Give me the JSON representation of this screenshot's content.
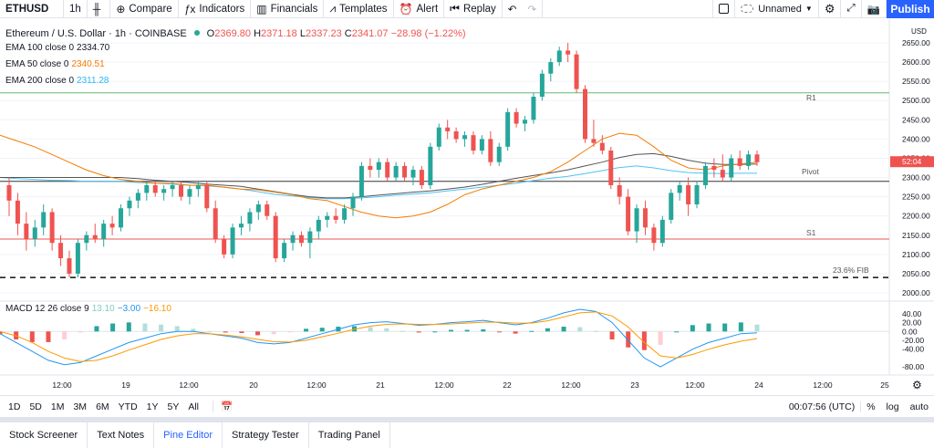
{
  "toolbar": {
    "symbol": "ETHUSD",
    "interval": "1h",
    "compare": "Compare",
    "indicators": "Indicators",
    "financials": "Financials",
    "templates": "Templates",
    "alert": "Alert",
    "replay": "Replay",
    "layout_name": "Unnamed",
    "publish": "Publish"
  },
  "legend": {
    "title": "Ethereum / U.S. Dollar · 1h · COINBASE",
    "o_label": "O",
    "o": "2369.80",
    "h_label": "H",
    "h": "2371.18",
    "l_label": "L",
    "l": "2337.23",
    "c_label": "C",
    "c": "2341.07",
    "change": "−28.98 (−1.22%)",
    "ema100_label": "EMA 100 close 0",
    "ema100": "2334.70",
    "ema50_label": "EMA 50 close 0",
    "ema50": "2340.51",
    "ema200_label": "EMA 200 close 0",
    "ema200": "2311.28",
    "macd_label": "MACD 12 26 close 9",
    "macd_hist": "13.10",
    "macd": "−3.00",
    "macd_signal": "−16.10"
  },
  "colors": {
    "up": "#26a69a",
    "down": "#ef5350",
    "ema100": "#555555",
    "ema50": "#f57c00",
    "ema200": "#4fc3f7",
    "r1": "#66bb6a",
    "s1": "#ef5350",
    "pivot": "#333333",
    "accent": "#2962ff",
    "macd": "#2196f3",
    "signal": "#ff9800"
  },
  "price_axis": {
    "currency": "USD",
    "ticks": [
      "2650.00",
      "2600.00",
      "2550.00",
      "2500.00",
      "2450.00",
      "2400.00",
      "2350.00",
      "2300.00",
      "2250.00",
      "2200.00",
      "2150.00",
      "2100.00",
      "2050.00",
      "2000.00"
    ],
    "last_price": "2341.07",
    "countdown": "52:04"
  },
  "macd_axis": {
    "ticks": [
      "40.00",
      "20.00",
      "0.00",
      "-20.00",
      "-40.00",
      "-80.00"
    ]
  },
  "time_axis": {
    "ticks": [
      "12:00",
      "19",
      "12:00",
      "20",
      "12:00",
      "21",
      "12:00",
      "22",
      "12:00",
      "23",
      "12:00",
      "24",
      "12:00",
      "25"
    ]
  },
  "levels": {
    "r1": "R1",
    "pivot": "Pivot",
    "s1": "S1",
    "fib": "23.6% FIB"
  },
  "chart_data": {
    "type": "candlestick",
    "y_range": [
      2000,
      2650
    ],
    "levels": {
      "r1": 2520,
      "pivot": 2290,
      "s1": 2140,
      "fib": 2040
    },
    "candles": [
      [
        2280,
        2300,
        2200,
        2240
      ],
      [
        2240,
        2260,
        2150,
        2180
      ],
      [
        2180,
        2210,
        2110,
        2140
      ],
      [
        2140,
        2190,
        2120,
        2170
      ],
      [
        2170,
        2230,
        2150,
        2210
      ],
      [
        2210,
        2220,
        2110,
        2130
      ],
      [
        2130,
        2150,
        2070,
        2090
      ],
      [
        2090,
        2110,
        2040,
        2050
      ],
      [
        2050,
        2140,
        2040,
        2130
      ],
      [
        2130,
        2160,
        2110,
        2150
      ],
      [
        2150,
        2180,
        2130,
        2140
      ],
      [
        2140,
        2190,
        2120,
        2180
      ],
      [
        2180,
        2200,
        2150,
        2170
      ],
      [
        2170,
        2230,
        2160,
        2220
      ],
      [
        2220,
        2250,
        2200,
        2240
      ],
      [
        2240,
        2270,
        2220,
        2260
      ],
      [
        2260,
        2290,
        2240,
        2280
      ],
      [
        2280,
        2290,
        2250,
        2260
      ],
      [
        2260,
        2280,
        2240,
        2270
      ],
      [
        2270,
        2290,
        2250,
        2280
      ],
      [
        2280,
        2290,
        2240,
        2250
      ],
      [
        2250,
        2280,
        2230,
        2270
      ],
      [
        2270,
        2290,
        2250,
        2280
      ],
      [
        2280,
        2290,
        2210,
        2220
      ],
      [
        2220,
        2240,
        2130,
        2140
      ],
      [
        2140,
        2150,
        2090,
        2100
      ],
      [
        2100,
        2180,
        2090,
        2170
      ],
      [
        2170,
        2200,
        2150,
        2180
      ],
      [
        2180,
        2220,
        2160,
        2210
      ],
      [
        2210,
        2240,
        2190,
        2230
      ],
      [
        2230,
        2240,
        2190,
        2200
      ],
      [
        2200,
        2210,
        2080,
        2090
      ],
      [
        2090,
        2140,
        2080,
        2130
      ],
      [
        2130,
        2160,
        2110,
        2150
      ],
      [
        2150,
        2160,
        2120,
        2130
      ],
      [
        2130,
        2170,
        2090,
        2160
      ],
      [
        2160,
        2200,
        2140,
        2190
      ],
      [
        2190,
        2210,
        2170,
        2200
      ],
      [
        2200,
        2220,
        2180,
        2190
      ],
      [
        2190,
        2230,
        2180,
        2220
      ],
      [
        2220,
        2260,
        2200,
        2250
      ],
      [
        2250,
        2340,
        2240,
        2330
      ],
      [
        2330,
        2350,
        2300,
        2320
      ],
      [
        2320,
        2350,
        2300,
        2340
      ],
      [
        2340,
        2350,
        2290,
        2300
      ],
      [
        2300,
        2340,
        2290,
        2330
      ],
      [
        2330,
        2340,
        2290,
        2300
      ],
      [
        2300,
        2330,
        2280,
        2320
      ],
      [
        2320,
        2330,
        2270,
        2280
      ],
      [
        2280,
        2390,
        2270,
        2380
      ],
      [
        2380,
        2440,
        2370,
        2430
      ],
      [
        2430,
        2450,
        2400,
        2420
      ],
      [
        2420,
        2430,
        2390,
        2400
      ],
      [
        2400,
        2420,
        2380,
        2410
      ],
      [
        2410,
        2420,
        2360,
        2370
      ],
      [
        2370,
        2410,
        2360,
        2400
      ],
      [
        2400,
        2420,
        2330,
        2340
      ],
      [
        2340,
        2390,
        2330,
        2380
      ],
      [
        2380,
        2480,
        2370,
        2470
      ],
      [
        2470,
        2480,
        2430,
        2440
      ],
      [
        2440,
        2460,
        2420,
        2450
      ],
      [
        2450,
        2520,
        2440,
        2510
      ],
      [
        2510,
        2580,
        2500,
        2570
      ],
      [
        2570,
        2610,
        2550,
        2600
      ],
      [
        2600,
        2640,
        2590,
        2630
      ],
      [
        2630,
        2650,
        2600,
        2620
      ],
      [
        2620,
        2630,
        2520,
        2530
      ],
      [
        2530,
        2540,
        2390,
        2400
      ],
      [
        2400,
        2450,
        2380,
        2390
      ],
      [
        2390,
        2410,
        2360,
        2370
      ],
      [
        2370,
        2380,
        2270,
        2280
      ],
      [
        2280,
        2300,
        2230,
        2250
      ],
      [
        2250,
        2270,
        2150,
        2160
      ],
      [
        2160,
        2230,
        2130,
        2220
      ],
      [
        2220,
        2240,
        2150,
        2170
      ],
      [
        2170,
        2180,
        2110,
        2130
      ],
      [
        2130,
        2200,
        2120,
        2190
      ],
      [
        2190,
        2270,
        2180,
        2260
      ],
      [
        2260,
        2290,
        2240,
        2280
      ],
      [
        2280,
        2300,
        2200,
        2230
      ],
      [
        2230,
        2290,
        2220,
        2280
      ],
      [
        2280,
        2340,
        2270,
        2330
      ],
      [
        2330,
        2350,
        2300,
        2320
      ],
      [
        2320,
        2360,
        2290,
        2300
      ],
      [
        2300,
        2360,
        2290,
        2350
      ],
      [
        2350,
        2370,
        2320,
        2330
      ],
      [
        2330,
        2370,
        2320,
        2360
      ],
      [
        2360,
        2370,
        2330,
        2340
      ]
    ],
    "ema50": [
      2410,
      2395,
      2380,
      2360,
      2340,
      2320,
      2305,
      2295,
      2290,
      2285,
      2285,
      2280,
      2280,
      2275,
      2270,
      2268,
      2262,
      2255,
      2245,
      2240,
      2225,
      2210,
      2200,
      2195,
      2200,
      2210,
      2230,
      2255,
      2270,
      2280,
      2290,
      2300,
      2315,
      2340,
      2370,
      2400,
      2415,
      2410,
      2380,
      2345,
      2325,
      2320,
      2330,
      2335,
      2340
    ],
    "ema100": [
      2300,
      2300,
      2300,
      2300,
      2300,
      2300,
      2300,
      2300,
      2297,
      2293,
      2290,
      2287,
      2283,
      2280,
      2277,
      2270,
      2263,
      2256,
      2250,
      2247,
      2247,
      2250,
      2254,
      2258,
      2262,
      2265,
      2270,
      2275,
      2282,
      2290,
      2298,
      2305,
      2312,
      2320,
      2330,
      2340,
      2352,
      2360,
      2362,
      2355,
      2345,
      2337,
      2334,
      2334,
      2335
    ],
    "ema200": [
      2300,
      2297,
      2295,
      2293,
      2292,
      2290,
      2290,
      2290,
      2287,
      2285,
      2283,
      2280,
      2278,
      2275,
      2270,
      2263,
      2256,
      2252,
      2248,
      2245,
      2245,
      2247,
      2250,
      2254,
      2257,
      2260,
      2265,
      2270,
      2275,
      2280,
      2285,
      2292,
      2298,
      2303,
      2310,
      2318,
      2326,
      2330,
      2325,
      2318,
      2313,
      2311,
      2310,
      2311,
      2311
    ],
    "macd": [
      -5,
      -25,
      -45,
      -65,
      -75,
      -70,
      -55,
      -40,
      -25,
      -15,
      -5,
      0,
      0,
      -5,
      -10,
      -15,
      -25,
      -28,
      -25,
      -15,
      -5,
      5,
      15,
      20,
      22,
      18,
      14,
      16,
      20,
      22,
      25,
      20,
      15,
      20,
      30,
      42,
      50,
      45,
      20,
      -20,
      -60,
      -80,
      -60,
      -40,
      -25,
      -15,
      -5,
      -3
    ],
    "signal": [
      0,
      -10,
      -25,
      -45,
      -60,
      -68,
      -65,
      -55,
      -42,
      -30,
      -18,
      -10,
      -5,
      -5,
      -8,
      -12,
      -18,
      -23,
      -24,
      -20,
      -12,
      -4,
      5,
      12,
      16,
      17,
      16,
      16,
      17,
      19,
      21,
      21,
      19,
      19,
      24,
      33,
      42,
      44,
      35,
      10,
      -25,
      -55,
      -60,
      -52,
      -40,
      -30,
      -22,
      -16
    ],
    "x_ticks": [
      "12:00",
      "19",
      "12:00",
      "20",
      "12:00",
      "21",
      "12:00",
      "22",
      "12:00",
      "23",
      "12:00",
      "24",
      "12:00",
      "25"
    ]
  },
  "bottom_bar": {
    "ranges": [
      "1D",
      "5D",
      "1M",
      "3M",
      "6M",
      "YTD",
      "1Y",
      "5Y",
      "All"
    ],
    "time": "00:07:56 (UTC)",
    "percent": "%",
    "log": "log",
    "auto": "auto"
  },
  "panel_tabs": [
    "Stock Screener",
    "Text Notes",
    "Pine Editor",
    "Strategy Tester",
    "Trading Panel"
  ]
}
